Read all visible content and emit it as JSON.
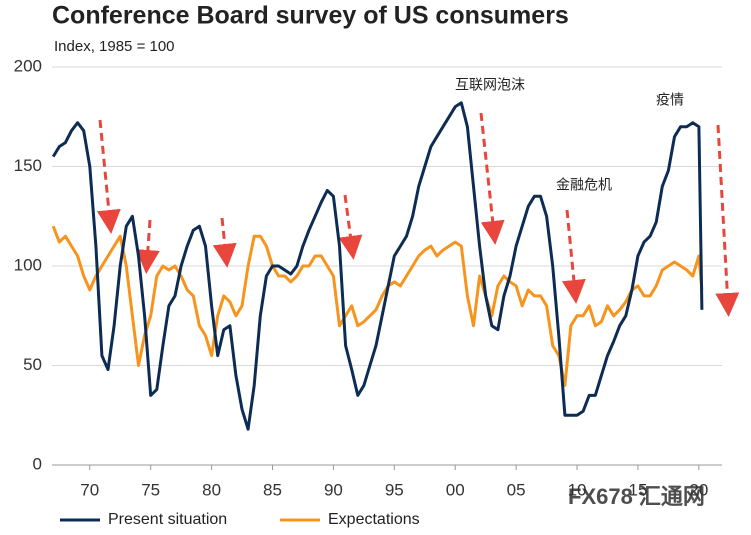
{
  "chart_data": {
    "type": "line",
    "title": "Conference Board survey of US consumers",
    "subtitle": "Index, 1985 = 100",
    "x": [
      1967,
      1967.5,
      1968,
      1968.5,
      1969,
      1969.5,
      1970,
      1970.5,
      1971,
      1971.5,
      1972,
      1972.5,
      1973,
      1973.5,
      1974,
      1974.5,
      1975,
      1975.5,
      1976,
      1976.5,
      1977,
      1977.5,
      1978,
      1978.5,
      1979,
      1979.5,
      1980,
      1980.5,
      1981,
      1981.5,
      1982,
      1982.5,
      1983,
      1983.5,
      1984,
      1984.5,
      1985,
      1985.5,
      1986,
      1986.5,
      1987,
      1987.5,
      1988,
      1988.5,
      1989,
      1989.5,
      1990,
      1990.5,
      1991,
      1991.5,
      1992,
      1992.5,
      1993,
      1993.5,
      1994,
      1994.5,
      1995,
      1995.5,
      1996,
      1996.5,
      1997,
      1997.5,
      1998,
      1998.5,
      1999,
      1999.5,
      2000,
      2000.5,
      2001,
      2001.5,
      2002,
      2002.5,
      2003,
      2003.5,
      2004,
      2004.5,
      2005,
      2005.5,
      2006,
      2006.5,
      2007,
      2007.5,
      2008,
      2008.5,
      2009,
      2009.5,
      2010,
      2010.5,
      2011,
      2011.5,
      2012,
      2012.5,
      2013,
      2013.5,
      2014,
      2014.5,
      2015,
      2015.5,
      2016,
      2016.5,
      2017,
      2017.5,
      2018,
      2018.5,
      2019,
      2019.5,
      2020,
      2020.25
    ],
    "series": [
      {
        "name": "Present situation",
        "color": "#0d2c54",
        "values": [
          155,
          160,
          162,
          168,
          172,
          168,
          150,
          110,
          55,
          48,
          70,
          100,
          120,
          125,
          105,
          75,
          35,
          38,
          60,
          80,
          85,
          100,
          110,
          118,
          120,
          110,
          80,
          55,
          68,
          70,
          45,
          28,
          18,
          40,
          75,
          95,
          100,
          100,
          98,
          96,
          100,
          110,
          118,
          125,
          132,
          138,
          135,
          110,
          60,
          48,
          35,
          40,
          50,
          60,
          75,
          90,
          105,
          110,
          115,
          125,
          140,
          150,
          160,
          165,
          170,
          175,
          180,
          182,
          170,
          140,
          110,
          85,
          70,
          68,
          85,
          95,
          110,
          120,
          130,
          135,
          135,
          125,
          100,
          65,
          25,
          25,
          25,
          27,
          35,
          35,
          45,
          55,
          62,
          70,
          75,
          88,
          105,
          112,
          115,
          122,
          140,
          148,
          165,
          170,
          170,
          172,
          170,
          78
        ]
      },
      {
        "name": "Expectations",
        "color": "#f7941d",
        "values": [
          120,
          112,
          115,
          110,
          105,
          95,
          88,
          95,
          100,
          105,
          110,
          115,
          100,
          75,
          50,
          65,
          75,
          95,
          100,
          98,
          100,
          95,
          88,
          85,
          70,
          65,
          55,
          75,
          85,
          82,
          75,
          80,
          100,
          115,
          115,
          110,
          100,
          95,
          95,
          92,
          95,
          100,
          100,
          105,
          105,
          100,
          95,
          70,
          75,
          80,
          70,
          72,
          75,
          78,
          85,
          90,
          92,
          90,
          95,
          100,
          105,
          108,
          110,
          105,
          108,
          110,
          112,
          110,
          85,
          70,
          95,
          85,
          75,
          90,
          95,
          92,
          90,
          80,
          88,
          85,
          85,
          80,
          60,
          55,
          40,
          70,
          75,
          75,
          80,
          70,
          72,
          80,
          75,
          78,
          82,
          88,
          90,
          85,
          85,
          90,
          98,
          100,
          102,
          100,
          98,
          95,
          105,
          88
        ]
      }
    ],
    "xlim": [
      1966.9,
      2021.9
    ],
    "xticks": [
      {
        "value": 1970,
        "label": "70"
      },
      {
        "value": 1975,
        "label": "75"
      },
      {
        "value": 1980,
        "label": "80"
      },
      {
        "value": 1985,
        "label": "85"
      },
      {
        "value": 1990,
        "label": "90"
      },
      {
        "value": 1995,
        "label": "95"
      },
      {
        "value": 2000,
        "label": "00"
      },
      {
        "value": 2005,
        "label": "05"
      },
      {
        "value": 2010,
        "label": "10"
      },
      {
        "value": 2015,
        "label": "15"
      },
      {
        "value": 2020,
        "label": "20"
      }
    ],
    "ylim": [
      0,
      200
    ],
    "yticks": [
      0,
      50,
      100,
      150,
      200
    ],
    "grid": true,
    "annotations": [
      "互联网泡沫",
      "金融危机",
      "疫情"
    ],
    "watermark": "FX678 汇通网"
  }
}
